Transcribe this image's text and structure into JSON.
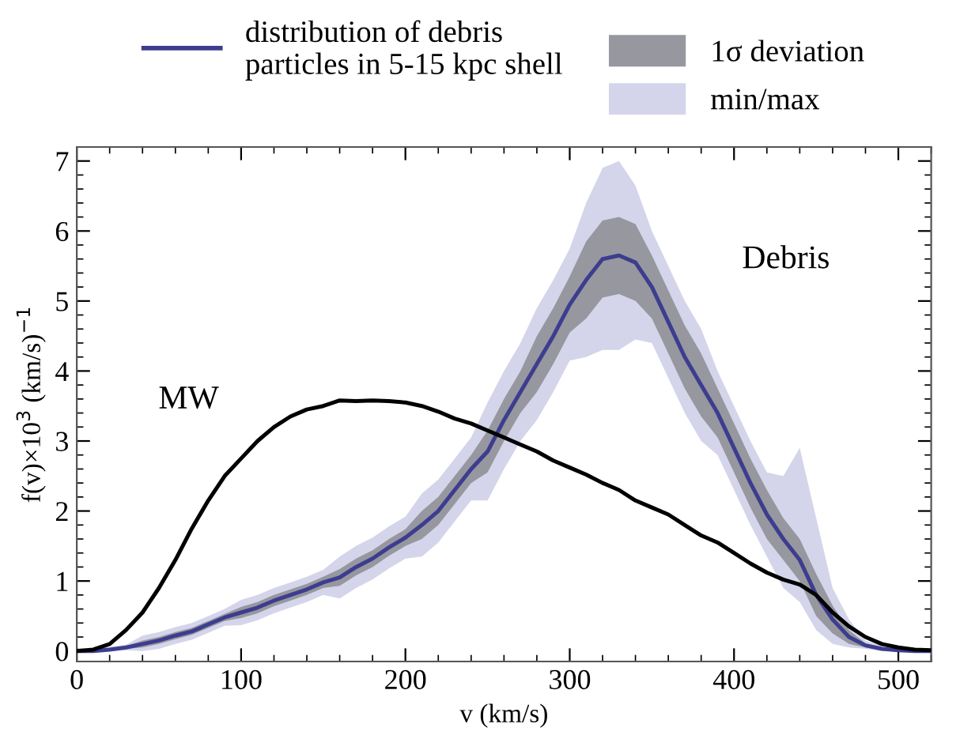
{
  "chart_data": {
    "type": "line",
    "xlabel": "v (km/s)",
    "ylabel": "f(v)×10$^{3}$ (km/s)$^{−1}$",
    "x": [
      0,
      10,
      20,
      30,
      40,
      50,
      60,
      70,
      80,
      90,
      100,
      110,
      120,
      130,
      140,
      150,
      160,
      170,
      180,
      190,
      200,
      210,
      220,
      230,
      240,
      250,
      260,
      270,
      280,
      290,
      300,
      310,
      320,
      330,
      340,
      350,
      360,
      370,
      380,
      390,
      400,
      410,
      420,
      430,
      440,
      450,
      460,
      470,
      480,
      490,
      500,
      510,
      520
    ],
    "series": [
      {
        "name": "min/max",
        "color": "#d4d5ea",
        "values": [
          null,
          null,
          null,
          null,
          null,
          null,
          null,
          null,
          null,
          null,
          null,
          null,
          null,
          null,
          null,
          null,
          null,
          null,
          null,
          null,
          null,
          null,
          null,
          null,
          null,
          null,
          null,
          null,
          null,
          null,
          null,
          null,
          null,
          null,
          null,
          null,
          null,
          null,
          null,
          null,
          null,
          null,
          null,
          null,
          null,
          null,
          null,
          null,
          null,
          null,
          null,
          null,
          null
        ],
        "lower": [
          0,
          0,
          0,
          0.01,
          0,
          0.03,
          0.1,
          0.16,
          0.26,
          0.36,
          0.37,
          0.44,
          0.54,
          0.62,
          0.7,
          0.8,
          0.75,
          0.9,
          1.02,
          1.18,
          1.32,
          1.35,
          1.55,
          1.85,
          2.15,
          2.15,
          2.6,
          3.0,
          3.3,
          3.7,
          4.15,
          4.2,
          4.3,
          4.3,
          4.45,
          4.4,
          3.9,
          3.4,
          3.0,
          2.8,
          2.3,
          1.8,
          1.35,
          0.9,
          0.7,
          0.3,
          0.1,
          0.05,
          0.03,
          0,
          0,
          0,
          0
        ],
        "upper": [
          0.04,
          0.04,
          0.06,
          0.09,
          0.22,
          0.27,
          0.34,
          0.4,
          0.5,
          0.6,
          0.73,
          0.8,
          0.9,
          0.98,
          1.06,
          1.16,
          1.35,
          1.5,
          1.62,
          1.78,
          1.92,
          2.25,
          2.45,
          2.75,
          3.05,
          3.55,
          4.0,
          4.4,
          4.9,
          5.3,
          5.75,
          6.4,
          6.9,
          7.0,
          6.65,
          6.0,
          5.5,
          5.0,
          4.6,
          4.0,
          3.5,
          3.0,
          2.55,
          2.5,
          2.9,
          1.9,
          0.9,
          0.45,
          0.15,
          0.08,
          0.05,
          0.03,
          0.02
        ]
      },
      {
        "name": "1σ deviation",
        "color": "#97979f",
        "values": [
          null,
          null,
          null,
          null,
          null,
          null,
          null,
          null,
          null,
          null,
          null,
          null,
          null,
          null,
          null,
          null,
          null,
          null,
          null,
          null,
          null,
          null,
          null,
          null,
          null,
          null,
          null,
          null,
          null,
          null,
          null,
          null,
          null,
          null,
          null,
          null,
          null,
          null,
          null,
          null,
          null,
          null,
          null,
          null,
          null,
          null,
          null,
          null,
          null,
          null,
          null,
          null,
          null
        ],
        "lower": [
          0,
          0,
          0,
          0.03,
          0.05,
          0.1,
          0.17,
          0.23,
          0.33,
          0.43,
          0.47,
          0.54,
          0.64,
          0.72,
          0.8,
          0.9,
          0.93,
          1.08,
          1.2,
          1.36,
          1.5,
          1.6,
          1.8,
          2.1,
          2.4,
          2.55,
          3.0,
          3.4,
          3.7,
          4.1,
          4.55,
          4.75,
          5.05,
          5.1,
          5.0,
          4.75,
          4.25,
          3.75,
          3.35,
          3.05,
          2.55,
          2.05,
          1.6,
          1.3,
          1.0,
          0.5,
          0.25,
          0.1,
          0.05,
          0.01,
          0,
          0,
          0
        ],
        "upper": [
          0.02,
          0.02,
          0.04,
          0.07,
          0.15,
          0.2,
          0.27,
          0.33,
          0.43,
          0.53,
          0.63,
          0.7,
          0.8,
          0.88,
          0.96,
          1.06,
          1.17,
          1.32,
          1.44,
          1.6,
          1.74,
          2.0,
          2.2,
          2.5,
          2.8,
          3.15,
          3.6,
          4.0,
          4.5,
          4.9,
          5.35,
          5.85,
          6.15,
          6.2,
          6.1,
          5.65,
          5.15,
          4.65,
          4.25,
          3.75,
          3.25,
          2.75,
          2.3,
          1.9,
          1.6,
          1.1,
          0.65,
          0.3,
          0.11,
          0.05,
          0.03,
          0.02,
          0.01
        ]
      },
      {
        "name": "distribution of debris particles in 5-15 kpc shell",
        "color": "#3d3d8f",
        "values": [
          0,
          0,
          0.02,
          0.05,
          0.1,
          0.15,
          0.22,
          0.28,
          0.38,
          0.48,
          0.55,
          0.62,
          0.72,
          0.8,
          0.88,
          0.98,
          1.05,
          1.2,
          1.32,
          1.48,
          1.62,
          1.8,
          2.0,
          2.3,
          2.6,
          2.85,
          3.3,
          3.7,
          4.1,
          4.5,
          4.95,
          5.3,
          5.6,
          5.65,
          5.55,
          5.2,
          4.7,
          4.2,
          3.8,
          3.4,
          2.9,
          2.4,
          1.95,
          1.6,
          1.3,
          0.8,
          0.45,
          0.2,
          0.08,
          0.03,
          0.01,
          0,
          0
        ]
      },
      {
        "name": "MW",
        "color": "#000000",
        "values": [
          0,
          0.02,
          0.1,
          0.3,
          0.55,
          0.9,
          1.3,
          1.75,
          2.15,
          2.5,
          2.75,
          3.0,
          3.2,
          3.35,
          3.45,
          3.5,
          3.58,
          3.57,
          3.58,
          3.57,
          3.55,
          3.5,
          3.42,
          3.32,
          3.25,
          3.15,
          3.05,
          2.95,
          2.85,
          2.72,
          2.62,
          2.52,
          2.4,
          2.3,
          2.15,
          2.05,
          1.95,
          1.8,
          1.65,
          1.55,
          1.4,
          1.25,
          1.12,
          1.02,
          0.95,
          0.8,
          0.55,
          0.35,
          0.2,
          0.1,
          0.05,
          0.02,
          0.01
        ]
      }
    ],
    "annotations": [
      "Debris"
    ],
    "xlim": [
      0,
      520
    ],
    "xticks": [
      0,
      100,
      200,
      300,
      400,
      500
    ],
    "ylim": [
      -0.15,
      7.2
    ],
    "yticks": [
      0,
      1,
      2,
      3,
      4,
      5,
      6,
      7
    ],
    "grid": false,
    "legend": "top"
  }
}
